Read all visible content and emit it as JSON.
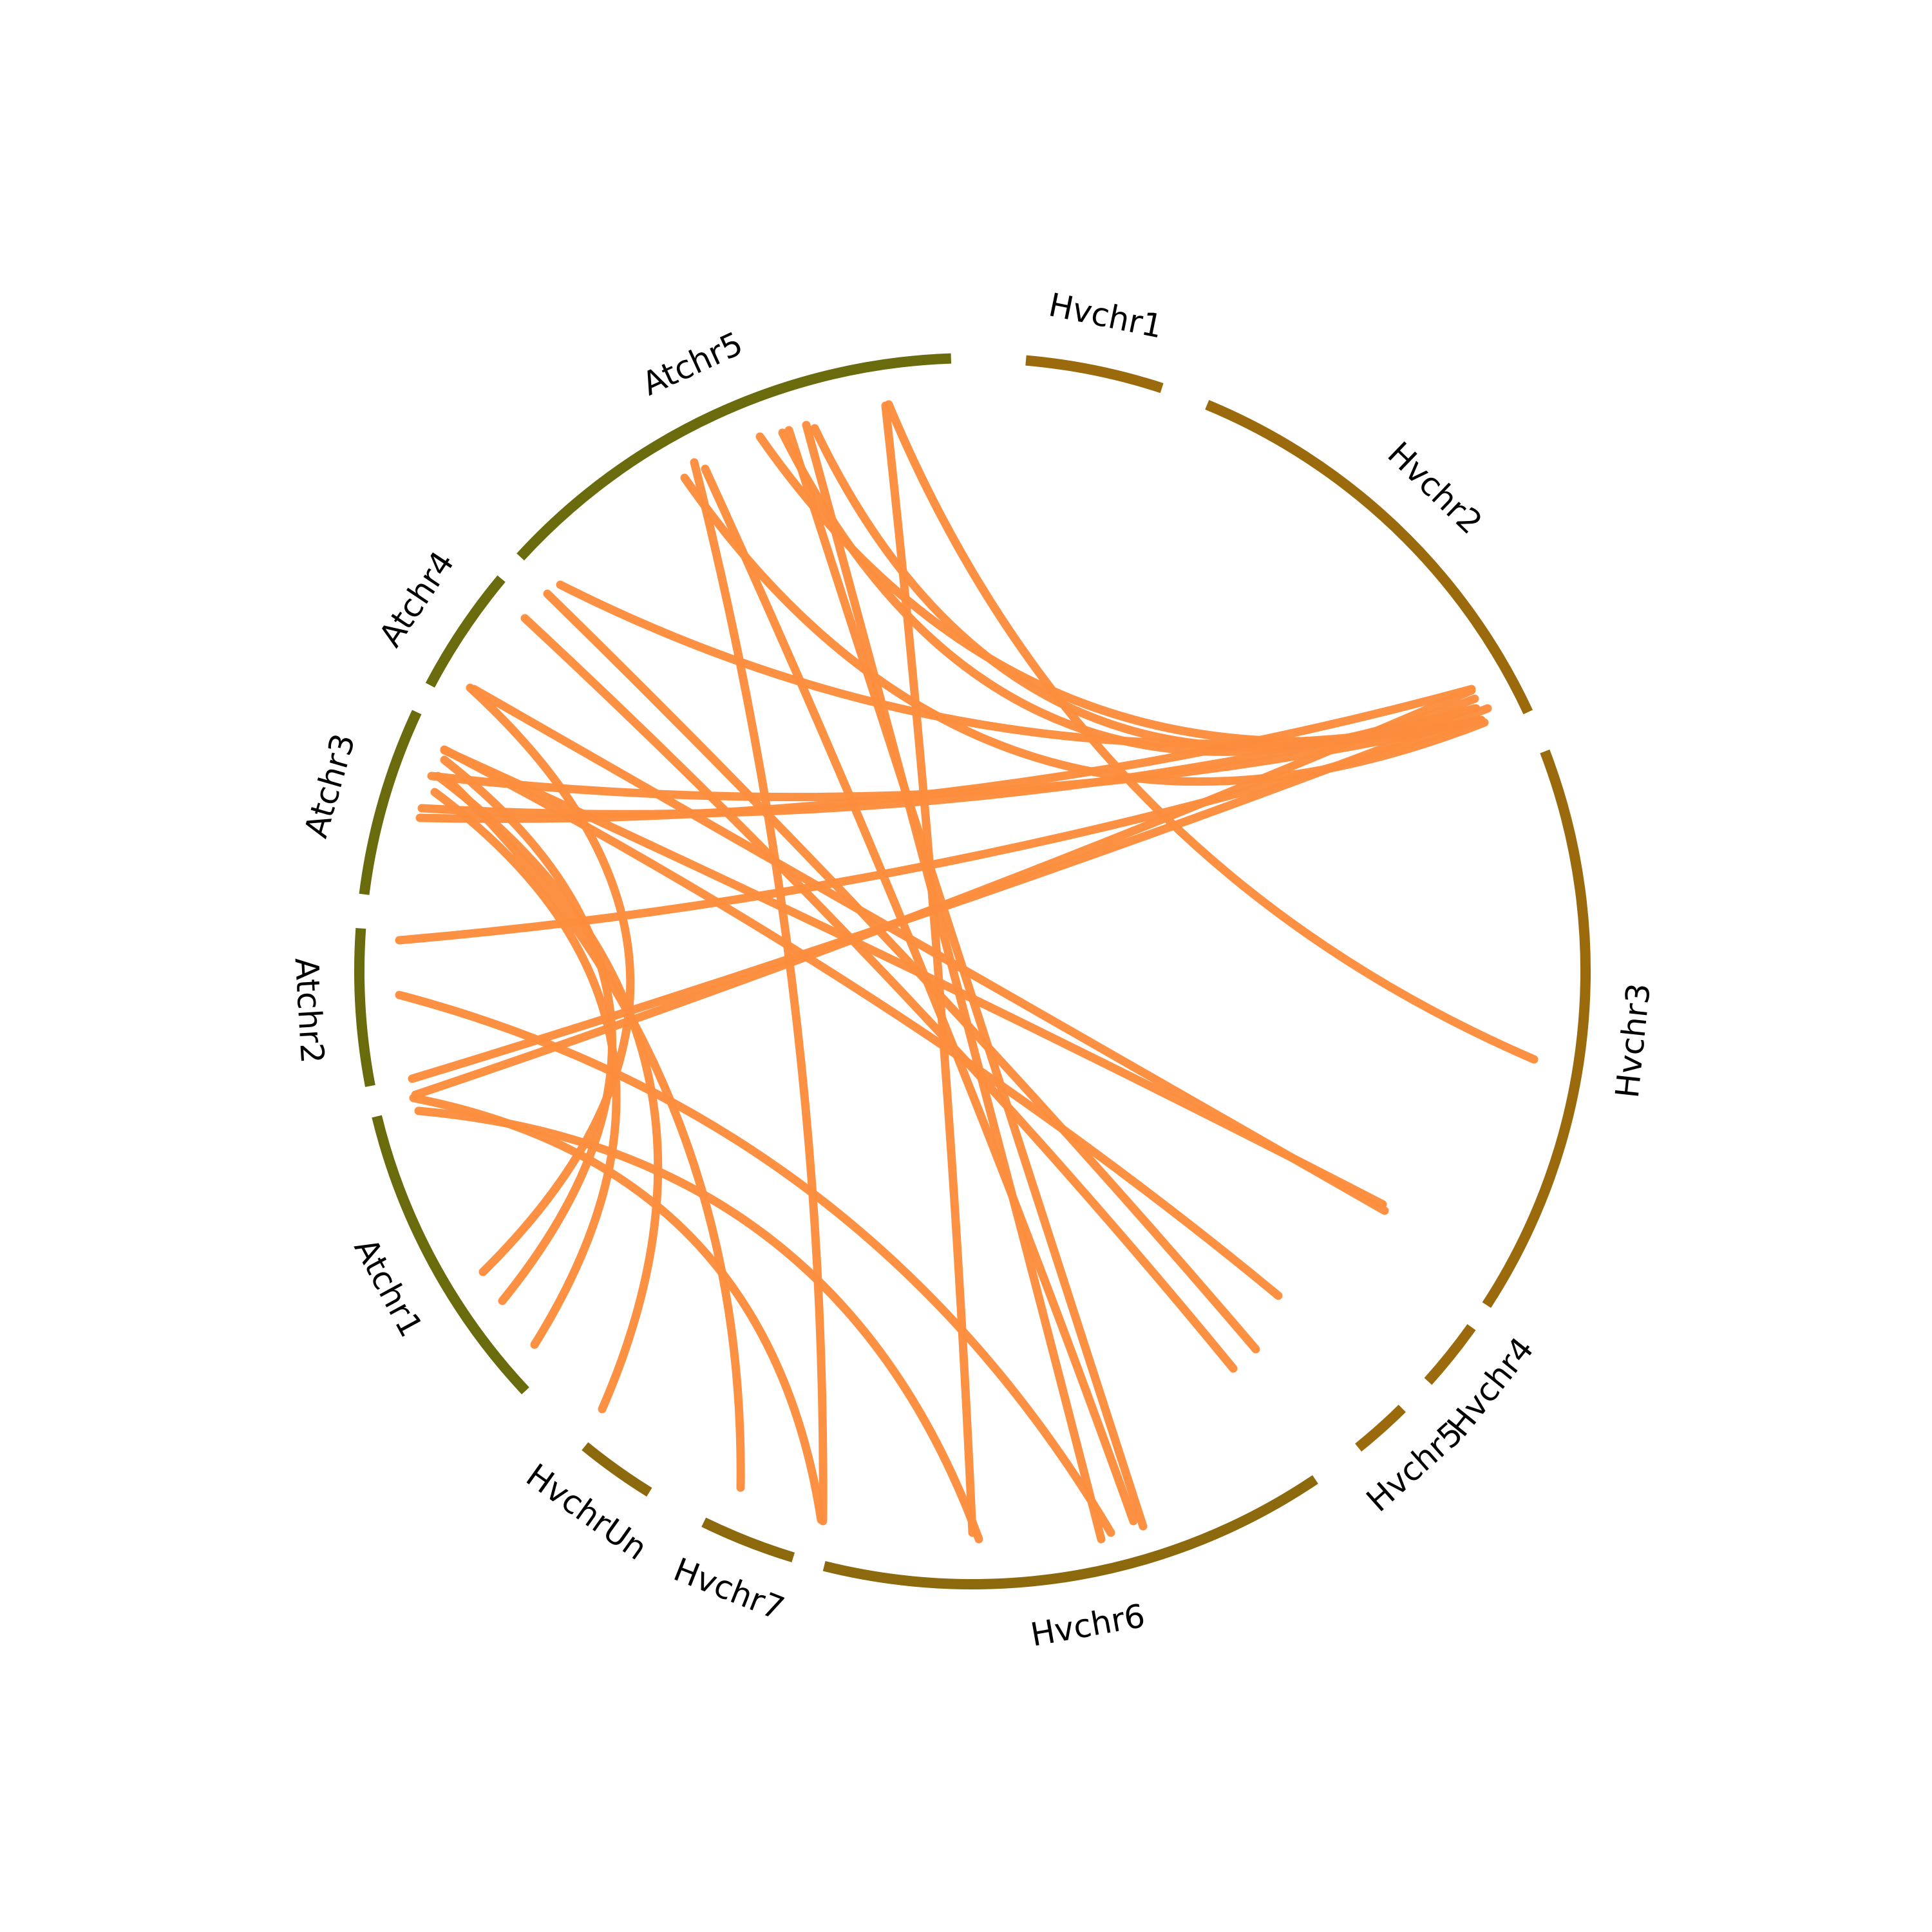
{
  "colors": {
    "background": "#ffffff",
    "link": "#fc8d3e",
    "label": "#000000"
  },
  "chromosomes": [
    {
      "name": "Atchr5",
      "species": "At",
      "color": "#6a6b0c"
    },
    {
      "name": "Atchr4",
      "species": "At",
      "color": "#6a6b0c"
    },
    {
      "name": "Atchr3",
      "species": "At",
      "color": "#6a6b0c"
    },
    {
      "name": "Atchr2",
      "species": "At",
      "color": "#6a6b0c"
    },
    {
      "name": "Atchr1",
      "species": "At",
      "color": "#6a6b0c"
    },
    {
      "name": "HvchrUn",
      "species": "Hv",
      "color": "#8d690e"
    },
    {
      "name": "Hvchr7",
      "species": "Hv",
      "color": "#8d690e"
    },
    {
      "name": "Hvchr6",
      "species": "Hv",
      "color": "#8d690e"
    },
    {
      "name": "Hvchr5",
      "species": "Hv",
      "color": "#9a6a0c"
    },
    {
      "name": "Hvchr4",
      "species": "Hv",
      "color": "#9a6a0c"
    },
    {
      "name": "Hvchr3",
      "species": "Hv",
      "color": "#9a6a0c"
    },
    {
      "name": "Hvchr2",
      "species": "Hv",
      "color": "#9a6a0c"
    },
    {
      "name": "Hvchr1",
      "species": "Hv",
      "color": "#9a6a0c"
    }
  ],
  "links_count": 30
}
